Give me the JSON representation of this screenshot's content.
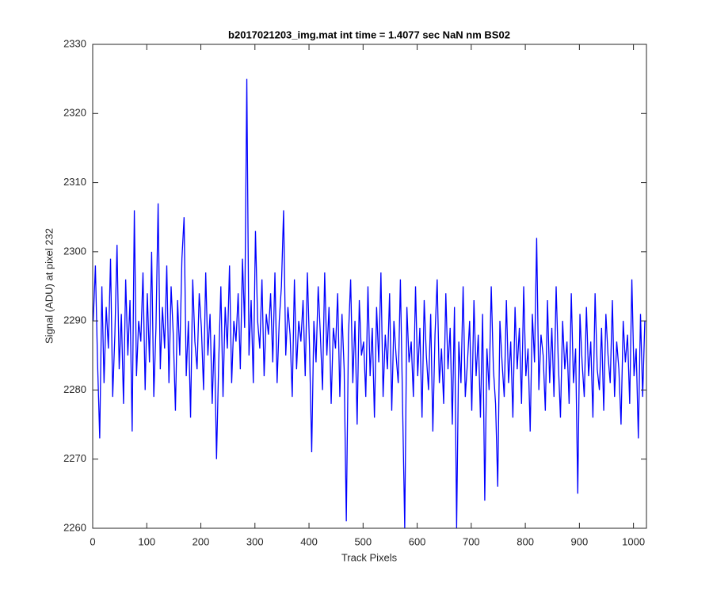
{
  "chart_data": {
    "type": "line",
    "title": "b2017021203_img.mat int time = 1.4077 sec  NaN nm BS02",
    "xlabel": "Track Pixels",
    "ylabel": "Signal (ADU) at pixel 232",
    "color": "#0000ff",
    "xlim": [
      0,
      1024
    ],
    "xticks": [
      0,
      100,
      200,
      300,
      400,
      500,
      600,
      700,
      800,
      900,
      1000
    ],
    "ylim": [
      2260,
      2330
    ],
    "yticks": [
      2260,
      2270,
      2280,
      2290,
      2300,
      2310,
      2320,
      2330
    ],
    "x": [
      1,
      5,
      9,
      13,
      17,
      21,
      25,
      29,
      33,
      37,
      41,
      45,
      49,
      53,
      57,
      61,
      65,
      69,
      73,
      77,
      81,
      85,
      89,
      93,
      97,
      101,
      105,
      109,
      113,
      117,
      121,
      125,
      129,
      133,
      137,
      141,
      145,
      149,
      153,
      157,
      161,
      165,
      169,
      173,
      177,
      181,
      185,
      189,
      193,
      197,
      201,
      205,
      209,
      213,
      217,
      221,
      225,
      229,
      233,
      237,
      241,
      245,
      249,
      253,
      257,
      261,
      265,
      269,
      273,
      277,
      281,
      285,
      289,
      293,
      297,
      301,
      305,
      309,
      313,
      317,
      321,
      325,
      329,
      333,
      337,
      341,
      345,
      349,
      353,
      357,
      361,
      365,
      369,
      373,
      377,
      381,
      385,
      389,
      393,
      397,
      401,
      405,
      409,
      413,
      417,
      421,
      425,
      429,
      433,
      437,
      441,
      445,
      449,
      453,
      457,
      461,
      465,
      469,
      473,
      477,
      481,
      485,
      489,
      493,
      497,
      501,
      505,
      509,
      513,
      517,
      521,
      525,
      529,
      533,
      537,
      541,
      545,
      549,
      553,
      557,
      561,
      565,
      569,
      573,
      577,
      581,
      585,
      589,
      593,
      597,
      601,
      605,
      609,
      613,
      617,
      621,
      625,
      629,
      633,
      637,
      641,
      645,
      649,
      653,
      657,
      661,
      665,
      669,
      673,
      677,
      681,
      685,
      689,
      693,
      697,
      701,
      705,
      709,
      713,
      717,
      721,
      725,
      729,
      733,
      737,
      741,
      745,
      749,
      753,
      757,
      761,
      765,
      769,
      773,
      777,
      781,
      785,
      789,
      793,
      797,
      801,
      805,
      809,
      813,
      817,
      821,
      825,
      829,
      833,
      837,
      841,
      845,
      849,
      853,
      857,
      861,
      865,
      869,
      873,
      877,
      881,
      885,
      889,
      893,
      897,
      901,
      905,
      909,
      913,
      917,
      921,
      925,
      929,
      933,
      937,
      941,
      945,
      949,
      953,
      957,
      961,
      965,
      969,
      973,
      977,
      981,
      985,
      989,
      993,
      997,
      1001,
      1005,
      1009,
      1013,
      1017,
      1021
    ],
    "values": [
      2290,
      2298,
      2284,
      2273,
      2295,
      2281,
      2292,
      2286,
      2299,
      2279,
      2288,
      2301,
      2283,
      2291,
      2278,
      2296,
      2285,
      2293,
      2274,
      2306,
      2282,
      2290,
      2287,
      2297,
      2280,
      2294,
      2284,
      2300,
      2279,
      2289,
      2307,
      2283,
      2292,
      2286,
      2298,
      2281,
      2295,
      2288,
      2277,
      2293,
      2285,
      2299,
      2305,
      2282,
      2290,
      2276,
      2296,
      2287,
      2283,
      2294,
      2289,
      2280,
      2297,
      2285,
      2291,
      2278,
      2288,
      2270,
      2284,
      2295,
      2279,
      2292,
      2286,
      2298,
      2281,
      2290,
      2287,
      2294,
      2283,
      2299,
      2289,
      2325,
      2285,
      2293,
      2281,
      2303,
      2290,
      2286,
      2296,
      2282,
      2291,
      2288,
      2294,
      2284,
      2297,
      2281,
      2290,
      2295,
      2306,
      2285,
      2292,
      2288,
      2279,
      2296,
      2283,
      2290,
      2287,
      2293,
      2282,
      2297,
      2286,
      2271,
      2290,
      2284,
      2295,
      2288,
      2280,
      2297,
      2285,
      2292,
      2278,
      2289,
      2286,
      2294,
      2279,
      2291,
      2283,
      2261,
      2288,
      2296,
      2281,
      2290,
      2275,
      2293,
      2285,
      2287,
      2279,
      2295,
      2282,
      2289,
      2276,
      2292,
      2284,
      2297,
      2279,
      2288,
      2283,
      2294,
      2277,
      2290,
      2285,
      2281,
      2296,
      2278,
      2260,
      2292,
      2284,
      2287,
      2279,
      2295,
      2282,
      2289,
      2276,
      2293,
      2285,
      2280,
      2291,
      2274,
      2288,
      2296,
      2281,
      2286,
      2278,
      2294,
      2283,
      2289,
      2275,
      2292,
      2260,
      2287,
      2281,
      2295,
      2279,
      2284,
      2290,
      2277,
      2293,
      2282,
      2288,
      2276,
      2291,
      2264,
      2286,
      2280,
      2295,
      2283,
      2278,
      2266,
      2290,
      2284,
      2279,
      2293,
      2281,
      2287,
      2276,
      2292,
      2283,
      2289,
      2278,
      2295,
      2282,
      2286,
      2274,
      2291,
      2284,
      2302,
      2280,
      2288,
      2285,
      2277,
      2293,
      2281,
      2289,
      2279,
      2295,
      2284,
      2276,
      2290,
      2283,
      2287,
      2278,
      2294,
      2281,
      2286,
      2265,
      2291,
      2284,
      2279,
      2292,
      2282,
      2287,
      2276,
      2294,
      2283,
      2280,
      2289,
      2277,
      2291,
      2285,
      2281,
      2293,
      2279,
      2287,
      2283,
      2275,
      2290,
      2284,
      2288,
      2278,
      2296,
      2282,
      2286,
      2273,
      2291,
      2279,
      2290
    ]
  }
}
